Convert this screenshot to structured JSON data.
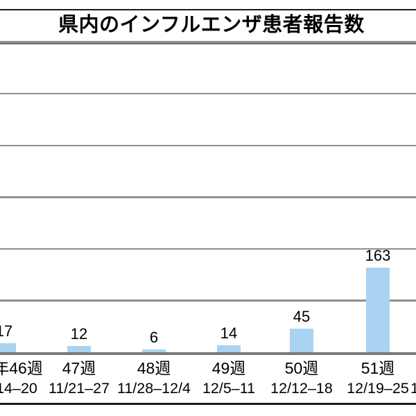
{
  "chart_data": {
    "type": "bar",
    "title": "県内のインフルエンザ患者報告数",
    "categories": [
      "年46週",
      "47週",
      "48週",
      "49週",
      "50週",
      "51週",
      ""
    ],
    "category_dates": [
      "14–20",
      "11/21–27",
      "11/28–12/4",
      "12/5–11",
      "12/12–18",
      "12/19–25",
      "1"
    ],
    "values": [
      17,
      12,
      6,
      14,
      45,
      163,
      null
    ],
    "data_labels": [
      "17",
      "12",
      "6",
      "14",
      "45",
      "163",
      ""
    ],
    "xlabel": "",
    "ylabel": "",
    "ylim": [
      0,
      600
    ],
    "gridline_step": 100,
    "grid": "horizontal",
    "legend": "none",
    "bar_color": "#A9D3F0",
    "grid_color": "#8F8F8F",
    "axis_color": "#7A7A7A",
    "title_rule_color": "#6E6E6E",
    "border_color": "#1A1A1A",
    "text_color": "#000000"
  }
}
